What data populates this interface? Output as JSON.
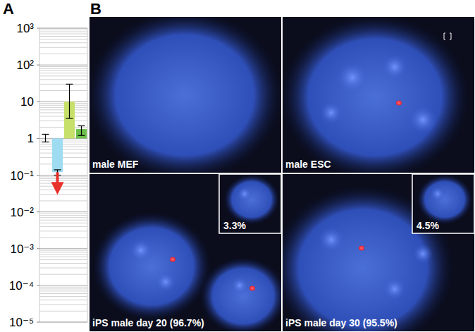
{
  "chart_data": {
    "type": "bar",
    "categories": [
      null,
      null,
      null,
      null
    ],
    "values": [
      1,
      0.12,
      10,
      1.8
    ],
    "errors": [
      [
        0.8,
        1.3
      ],
      [
        0.1,
        0.14
      ],
      [
        3.5,
        30
      ],
      [
        1.2,
        2.2
      ]
    ],
    "below_limit": [
      false,
      true,
      false,
      false
    ],
    "colors": [
      "#bdbdbd",
      "#9fdcf2",
      "#c6e06a",
      "#6cbf4a"
    ],
    "log": "y",
    "grid": true,
    "tick_labels": "y",
    "ylim": [
      1e-05,
      1000
    ],
    "yticks": [
      {
        "value": 1000,
        "label": "10³"
      },
      {
        "value": 100,
        "label": "10²"
      },
      10,
      1,
      {
        "value": 0.1,
        "label": "10⁻¹"
      },
      {
        "value": 0.01,
        "label": "10⁻²"
      },
      {
        "value": 0.001,
        "label": "10⁻³"
      },
      {
        "value": 0.0001,
        "label": "10⁻⁴"
      },
      {
        "value": 1e-05,
        "label": "10⁻⁵"
      }
    ]
  },
  "panel_labels": [
    "A",
    "B"
  ],
  "images": [
    {
      "label": "male MEF"
    },
    {
      "label": "male ESC"
    },
    {
      "label": "iPS male day 20 (96.7%)",
      "inset": "3.3%"
    },
    {
      "label": "iPS male day 30 (95.5%)",
      "inset": "4.5%"
    }
  ]
}
